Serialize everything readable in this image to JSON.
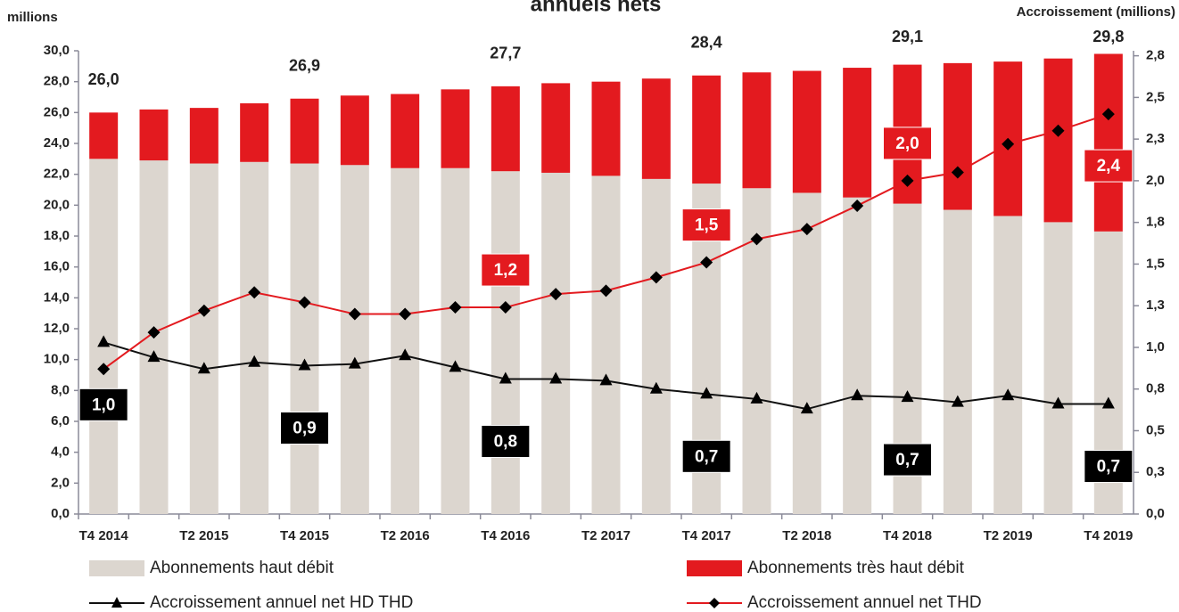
{
  "chart_data": {
    "type": "bar-line",
    "title": "annuels nets",
    "ylabel": "millions",
    "y2label": "Accroissement (millions)",
    "categories": [
      "T4 2014",
      null,
      "T2 2015",
      null,
      "T4 2015",
      null,
      "T2 2016",
      null,
      "T4 2016",
      null,
      "T2 2017",
      null,
      "T4 2017",
      null,
      "T2 2018",
      null,
      "T4 2018",
      null,
      "T2 2019",
      null,
      "T4 2019"
    ],
    "ylim": [
      0,
      30
    ],
    "yticks": [
      {
        "value": 0,
        "label": "0,0"
      },
      {
        "value": 2,
        "label": "2,0"
      },
      {
        "value": 4,
        "label": "4,0"
      },
      {
        "value": 6,
        "label": "6,0"
      },
      {
        "value": 8,
        "label": "8,0"
      },
      {
        "value": 10,
        "label": "10,0"
      },
      {
        "value": 12,
        "label": "12,0"
      },
      {
        "value": 14,
        "label": "14,0"
      },
      {
        "value": 16,
        "label": "16,0"
      },
      {
        "value": 18,
        "label": "18,0"
      },
      {
        "value": 20,
        "label": "20,0"
      },
      {
        "value": 22,
        "label": "22,0"
      },
      {
        "value": 24,
        "label": "24,0"
      },
      {
        "value": 26,
        "label": "26,0"
      },
      {
        "value": 28,
        "label": "28,0"
      },
      {
        "value": 30,
        "label": "30,0"
      }
    ],
    "y2lim": [
      0,
      2.78
    ],
    "y2ticks": [
      {
        "value": 0,
        "label": "0,0"
      },
      {
        "value": 0.25,
        "label": "0,3"
      },
      {
        "value": 0.5,
        "label": "0,5"
      },
      {
        "value": 0.75,
        "label": "0,8"
      },
      {
        "value": 1,
        "label": "1,0"
      },
      {
        "value": 1.25,
        "label": "1,3"
      },
      {
        "value": 1.5,
        "label": "1,5"
      },
      {
        "value": 1.75,
        "label": "1,8"
      },
      {
        "value": 2,
        "label": "2,0"
      },
      {
        "value": 2.25,
        "label": "2,3"
      },
      {
        "value": 2.5,
        "label": "2,5"
      },
      {
        "value": 2.75,
        "label": "2,8"
      }
    ],
    "series": [
      {
        "name": "Abonnements haut débit",
        "type": "bar",
        "color": "#dcd6cf",
        "values": [
          23.0,
          22.9,
          22.7,
          22.8,
          22.7,
          22.6,
          22.4,
          22.4,
          22.2,
          22.1,
          21.9,
          21.7,
          21.4,
          21.1,
          20.8,
          20.5,
          20.1,
          19.7,
          19.3,
          18.9,
          18.3
        ]
      },
      {
        "name": "Abonnements très haut débit",
        "type": "bar",
        "color": "#e31a1f",
        "values": [
          3.0,
          3.3,
          3.6,
          3.8,
          4.2,
          4.5,
          4.8,
          5.1,
          5.5,
          5.8,
          6.1,
          6.5,
          7.0,
          7.5,
          7.9,
          8.4,
          9.0,
          9.5,
          10.0,
          10.6,
          11.5
        ]
      },
      {
        "name": "Accroissement annuel net HD THD",
        "type": "line",
        "axis": "y2",
        "color": "#111111",
        "marker": "triangle",
        "values": [
          1.03,
          0.94,
          0.87,
          0.91,
          0.89,
          0.9,
          0.95,
          0.88,
          0.81,
          0.81,
          0.8,
          0.75,
          0.72,
          0.69,
          0.63,
          0.71,
          0.7,
          0.67,
          0.71,
          0.66,
          0.66
        ],
        "value_labels": [
          "1,0",
          null,
          null,
          null,
          "0,9",
          null,
          null,
          null,
          "0,8",
          null,
          null,
          null,
          "0,7",
          null,
          null,
          null,
          "0,7",
          null,
          null,
          null,
          "0,7"
        ]
      },
      {
        "name": "Accroissement annuel net THD",
        "type": "line",
        "axis": "y2",
        "color": "#e31a1f",
        "marker": "diamond",
        "values": [
          0.87,
          1.09,
          1.22,
          1.33,
          1.27,
          1.2,
          1.2,
          1.24,
          1.24,
          1.32,
          1.34,
          1.42,
          1.51,
          1.65,
          1.71,
          1.85,
          2.0,
          2.05,
          2.22,
          2.3,
          2.4
        ],
        "value_labels": [
          null,
          null,
          null,
          null,
          null,
          null,
          null,
          null,
          "1,2",
          null,
          null,
          null,
          "1,5",
          null,
          null,
          null,
          "2,0",
          null,
          null,
          null,
          "2,4"
        ]
      }
    ],
    "annotations": [
      {
        "x": "T4 2014",
        "value": 26.0,
        "text": "26,0"
      },
      {
        "x": "T4 2015",
        "value": 26.9,
        "text": "26,9"
      },
      {
        "x": "T4 2016",
        "value": 27.7,
        "text": "27,7"
      },
      {
        "x": "T4 2017",
        "value": 28.4,
        "text": "28,4"
      },
      {
        "x": "T4 2018",
        "value": 29.1,
        "text": "29,1"
      },
      {
        "x": "T4 2019",
        "value": 29.8,
        "text": "29,8"
      }
    ]
  }
}
